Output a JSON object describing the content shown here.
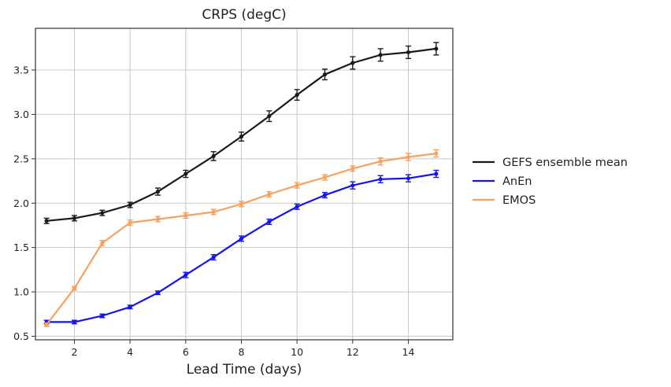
{
  "chart_data": {
    "type": "line",
    "title": "CRPS (degC)",
    "xlabel": "Lead Time (days)",
    "ylabel": "",
    "xlim": [
      0.6,
      15.6
    ],
    "ylim": [
      0.46,
      3.97
    ],
    "xticks": [
      2,
      4,
      6,
      8,
      10,
      12,
      14
    ],
    "yticks": [
      0.5,
      1.0,
      1.5,
      2.0,
      2.5,
      3.0,
      3.5
    ],
    "ytick_labels": [
      "0.5",
      "1.0",
      "1.5",
      "2.0",
      "2.5",
      "3.0",
      "3.5"
    ],
    "xtick_labels": [
      "2",
      "4",
      "6",
      "8",
      "10",
      "12",
      "14"
    ],
    "grid": true,
    "legend_position": "right-outside",
    "x": [
      1,
      2,
      3,
      4,
      5,
      6,
      7,
      8,
      9,
      10,
      11,
      12,
      13,
      14,
      15
    ],
    "series": [
      {
        "name": "GEFS ensemble mean",
        "color": "#1a1a1a",
        "values": [
          1.8,
          1.83,
          1.89,
          1.98,
          2.13,
          2.33,
          2.53,
          2.75,
          2.98,
          3.22,
          3.45,
          3.58,
          3.67,
          3.7,
          3.74
        ],
        "errors": [
          0.03,
          0.03,
          0.03,
          0.03,
          0.04,
          0.04,
          0.05,
          0.05,
          0.06,
          0.06,
          0.06,
          0.07,
          0.07,
          0.07,
          0.07
        ]
      },
      {
        "name": "AnEn",
        "color": "#1414f0",
        "values": [
          0.66,
          0.66,
          0.73,
          0.83,
          0.99,
          1.19,
          1.39,
          1.6,
          1.79,
          1.96,
          2.09,
          2.2,
          2.27,
          2.28,
          2.33
        ],
        "errors": [
          0.02,
          0.02,
          0.02,
          0.02,
          0.02,
          0.03,
          0.03,
          0.03,
          0.03,
          0.03,
          0.03,
          0.04,
          0.04,
          0.04,
          0.04
        ]
      },
      {
        "name": "EMOS",
        "color": "#f5a15f",
        "values": [
          0.63,
          1.04,
          1.55,
          1.78,
          1.82,
          1.86,
          1.9,
          1.99,
          2.1,
          2.2,
          2.29,
          2.39,
          2.47,
          2.52,
          2.56
        ],
        "errors": [
          0.02,
          0.02,
          0.03,
          0.03,
          0.03,
          0.03,
          0.03,
          0.03,
          0.03,
          0.03,
          0.03,
          0.03,
          0.04,
          0.04,
          0.04
        ]
      }
    ]
  }
}
